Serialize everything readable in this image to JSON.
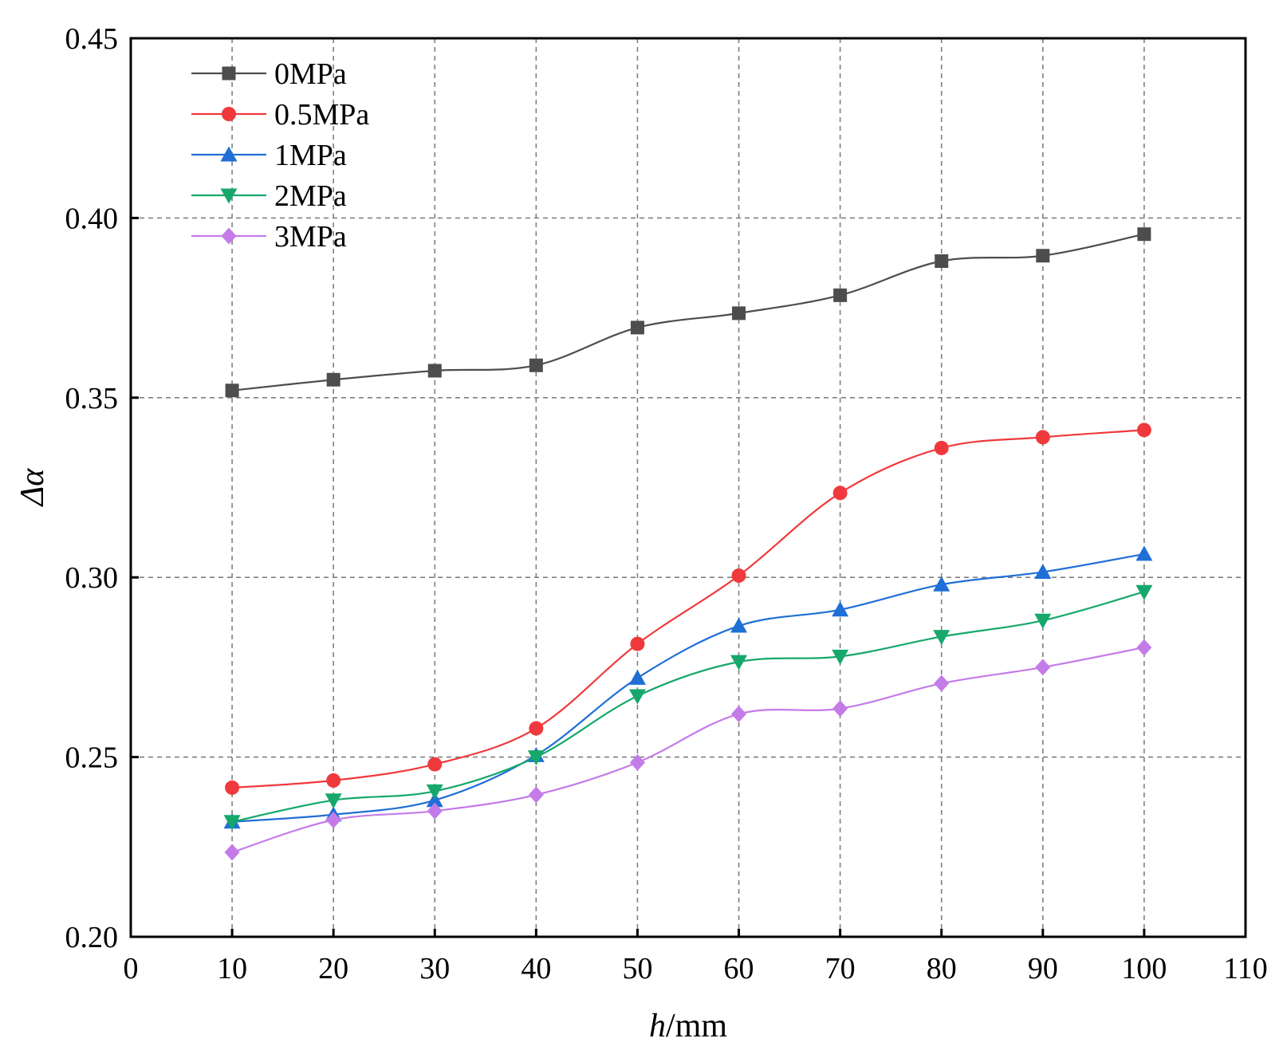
{
  "chart_data": {
    "type": "line",
    "title": "",
    "xlabel_italic": "h",
    "xlabel_rest": "/mm",
    "ylabel": "Δα",
    "xlim": [
      0,
      110
    ],
    "ylim": [
      0.2,
      0.45
    ],
    "x_ticks": [
      "0",
      "10",
      "20",
      "30",
      "40",
      "50",
      "60",
      "70",
      "80",
      "90",
      "100",
      "110"
    ],
    "x_tick_values": [
      0,
      10,
      20,
      30,
      40,
      50,
      60,
      70,
      80,
      90,
      100,
      110
    ],
    "y_ticks": [
      "0.20",
      "0.25",
      "0.30",
      "0.35",
      "0.40",
      "0.45"
    ],
    "y_tick_values": [
      0.2,
      0.25,
      0.3,
      0.35,
      0.4,
      0.45
    ],
    "grid": true,
    "legend_position": "top-left",
    "x": [
      10,
      20,
      30,
      40,
      50,
      60,
      70,
      80,
      90,
      100
    ],
    "series": [
      {
        "name": "0MPa",
        "color": "#4d4d4d",
        "marker": "square",
        "values": [
          0.352,
          0.355,
          0.3575,
          0.359,
          0.3695,
          0.3735,
          0.3785,
          0.388,
          0.3895,
          0.3955
        ]
      },
      {
        "name": "0.5MPa",
        "color": "#f0393c",
        "marker": "circle",
        "values": [
          0.2415,
          0.2435,
          0.248,
          0.258,
          0.2815,
          0.3005,
          0.3235,
          0.336,
          0.339,
          0.341
        ]
      },
      {
        "name": "1MPa",
        "color": "#1f6fd6",
        "marker": "triangle-up",
        "values": [
          0.232,
          0.234,
          0.238,
          0.2505,
          0.272,
          0.2865,
          0.291,
          0.298,
          0.3015,
          0.3065
        ]
      },
      {
        "name": "2MPa",
        "color": "#16a86b",
        "marker": "triangle-down",
        "values": [
          0.232,
          0.238,
          0.2405,
          0.25,
          0.267,
          0.2765,
          0.278,
          0.2835,
          0.288,
          0.296
        ]
      },
      {
        "name": "3MPa",
        "color": "#c47be8",
        "marker": "diamond",
        "values": [
          0.2235,
          0.2325,
          0.235,
          0.2395,
          0.2485,
          0.262,
          0.2635,
          0.2705,
          0.275,
          0.2805
        ]
      }
    ]
  }
}
